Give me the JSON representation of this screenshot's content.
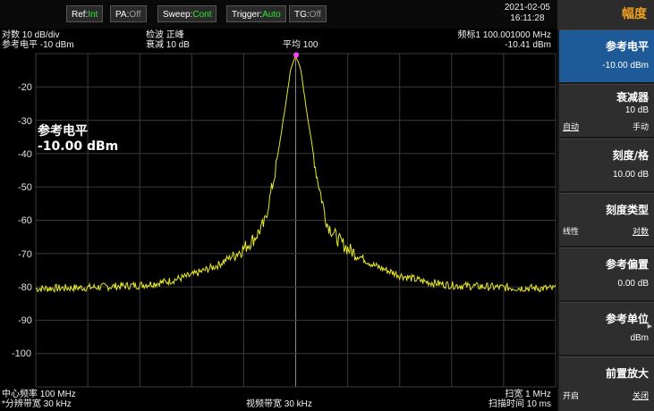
{
  "topbar": {
    "buttons": [
      {
        "label": "Ref:",
        "value": "Int",
        "state": "green"
      },
      {
        "label": "PA:",
        "value": "Off",
        "state": "gray"
      },
      {
        "label": "Sweep:",
        "value": "Cont",
        "state": "green"
      },
      {
        "label": "Trigger:",
        "value": "Auto",
        "state": "green"
      },
      {
        "label": "TG:",
        "value": "Off",
        "state": "gray"
      }
    ],
    "date": "2021-02-05",
    "time": "16:11:28"
  },
  "info": {
    "scale_line": "对数 10 dB/div",
    "ref_line": "参考电平 -10 dBm",
    "detector_line": "检波 正峰",
    "atten_line": "衰减 10 dB",
    "average": "平均 100",
    "marker_line": "频标1  100.001000 MHz",
    "marker_value": "-10.41 dBm",
    "center_freq": "中心频率 100 MHz",
    "rbw": "*分辨带宽 30 kHz",
    "vbw": "视频带宽 30 kHz",
    "span": "扫宽 1 MHz",
    "sweep_time": "扫描时间 10 ms"
  },
  "overlay": {
    "title": "参考电平",
    "value": "-10.00 dBm"
  },
  "y_axis_labels": [
    "-20",
    "-30",
    "-40",
    "-50",
    "-60",
    "-70",
    "-80",
    "-90",
    "-100"
  ],
  "chart_data": {
    "type": "line",
    "title": "",
    "xlabel": "",
    "ylabel": "",
    "x_unit": "MHz",
    "y_unit": "dBm",
    "xlim": [
      99.5,
      100.5
    ],
    "ylim": [
      -110,
      -10
    ],
    "grid": true,
    "series": [
      {
        "x": [
          99.5,
          99.6,
          99.7,
          99.75,
          99.8,
          99.85,
          99.9,
          99.92,
          99.94,
          99.96,
          99.98,
          99.99,
          100.0,
          100.01,
          100.02,
          100.04,
          100.06,
          100.08,
          100.1,
          100.15,
          100.2,
          100.25,
          100.3,
          100.4,
          100.5
        ],
        "y": [
          -80.5,
          -80.2,
          -79.5,
          -78.5,
          -76.5,
          -73.5,
          -68.5,
          -65.5,
          -61,
          -46,
          -26,
          -15,
          -10.4,
          -15,
          -26,
          -46,
          -61,
          -65.5,
          -68.5,
          -73.5,
          -76.5,
          -78.5,
          -79.5,
          -80.2,
          -80.5
        ]
      }
    ],
    "marker": {
      "name": "频标1",
      "x": 100.001,
      "y": -10.41
    }
  },
  "panel": {
    "title": "幅度",
    "keys": [
      {
        "label": "参考电平",
        "value": "-10.00 dBm"
      },
      {
        "label": "衰减器",
        "value": "10 dB",
        "left": "自动",
        "right": "手动"
      },
      {
        "label": "刻度/格",
        "value": "10.00 dB"
      },
      {
        "label": "刻度类型",
        "left": "线性",
        "right": "对数"
      },
      {
        "label": "参考偏置",
        "value": "0.00 dB"
      },
      {
        "label": "参考单位",
        "value": "dBm"
      },
      {
        "label": "前置放大",
        "left": "开启",
        "right": "关闭"
      }
    ]
  },
  "colors": {
    "trace": "#e8e82a",
    "marker": "#ff40ff",
    "grid": "#3a3a3a",
    "panel_active": "#1e5a98",
    "panel_title": "#f0a020",
    "status_on": "#2ee82e"
  }
}
